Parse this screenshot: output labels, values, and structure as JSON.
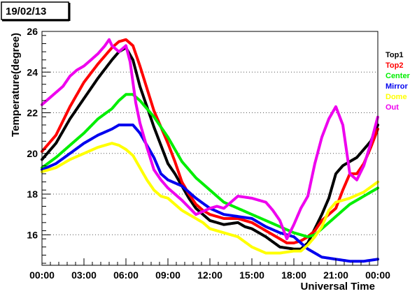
{
  "date_label": "19/02/13",
  "chart_data": {
    "type": "line",
    "title": "",
    "xlabel": "Universal Time",
    "ylabel": "Temperature(degree)",
    "xlim": [
      0,
      24
    ],
    "ylim": [
      14.5,
      26
    ],
    "x_ticks": [
      0,
      3,
      6,
      9,
      12,
      15,
      18,
      21,
      24
    ],
    "x_tick_labels": [
      "00:00",
      "03:00",
      "06:00",
      "09:00",
      "12:00",
      "15:00",
      "18:00",
      "21:00",
      "00:00"
    ],
    "y_ticks": [
      16,
      18,
      20,
      22,
      24,
      26
    ],
    "y_tick_labels": [
      "16",
      "18",
      "20",
      "22",
      "24",
      "26"
    ],
    "grid": "horizontal dotted",
    "legend_position": "right",
    "series": [
      {
        "name": "Top1",
        "color": "#000000",
        "points": [
          [
            0,
            19.7
          ],
          [
            1,
            20.5
          ],
          [
            2,
            21.7
          ],
          [
            3,
            22.7
          ],
          [
            4,
            23.7
          ],
          [
            5,
            24.6
          ],
          [
            5.5,
            25.0
          ],
          [
            6,
            25.2
          ],
          [
            6.5,
            24.6
          ],
          [
            7,
            23.3
          ],
          [
            7.5,
            22.3
          ],
          [
            8,
            21.3
          ],
          [
            8.5,
            20.4
          ],
          [
            9,
            19.5
          ],
          [
            9.5,
            19.0
          ],
          [
            10,
            18.4
          ],
          [
            10.5,
            17.8
          ],
          [
            11,
            17.3
          ],
          [
            11.5,
            17.0
          ],
          [
            12,
            16.7
          ],
          [
            13,
            16.5
          ],
          [
            14,
            16.6
          ],
          [
            14.5,
            16.4
          ],
          [
            15,
            16.3
          ],
          [
            16,
            15.9
          ],
          [
            17,
            15.4
          ],
          [
            18,
            15.3
          ],
          [
            18.5,
            15.3
          ],
          [
            19,
            15.6
          ],
          [
            19.5,
            16.3
          ],
          [
            20,
            17.0
          ],
          [
            20.5,
            17.8
          ],
          [
            21,
            19.0
          ],
          [
            21.5,
            19.4
          ],
          [
            22,
            19.6
          ],
          [
            22.5,
            19.8
          ],
          [
            23,
            20.2
          ],
          [
            23.5,
            20.6
          ],
          [
            24,
            21.4
          ]
        ]
      },
      {
        "name": "Top2",
        "color": "#ff0000",
        "points": [
          [
            0,
            20.1
          ],
          [
            1,
            20.9
          ],
          [
            2,
            22.3
          ],
          [
            3,
            23.5
          ],
          [
            4,
            24.4
          ],
          [
            5,
            25.2
          ],
          [
            5.5,
            25.5
          ],
          [
            6,
            25.6
          ],
          [
            6.5,
            25.3
          ],
          [
            7,
            24.3
          ],
          [
            7.5,
            23.2
          ],
          [
            8,
            22.1
          ],
          [
            8.5,
            21.3
          ],
          [
            9,
            20.5
          ],
          [
            9.5,
            19.6
          ],
          [
            10,
            18.6
          ],
          [
            10.5,
            18.0
          ],
          [
            11,
            17.5
          ],
          [
            11.5,
            17.2
          ],
          [
            12,
            17.0
          ],
          [
            13,
            16.8
          ],
          [
            14,
            16.8
          ],
          [
            15,
            16.6
          ],
          [
            16,
            16.2
          ],
          [
            17,
            15.8
          ],
          [
            17.5,
            15.6
          ],
          [
            18,
            15.6
          ],
          [
            18.5,
            15.7
          ],
          [
            19,
            15.9
          ],
          [
            19.5,
            16.2
          ],
          [
            20,
            16.7
          ],
          [
            20.5,
            17.0
          ],
          [
            21,
            17.3
          ],
          [
            21.5,
            18.2
          ],
          [
            22,
            19.0
          ],
          [
            22.5,
            19.0
          ],
          [
            23,
            19.5
          ],
          [
            23.5,
            20.3
          ],
          [
            24,
            21.2
          ]
        ]
      },
      {
        "name": "Center",
        "color": "#00ee00",
        "points": [
          [
            0,
            19.3
          ],
          [
            1,
            19.8
          ],
          [
            2,
            20.4
          ],
          [
            3,
            21.0
          ],
          [
            4,
            21.7
          ],
          [
            5,
            22.2
          ],
          [
            5.5,
            22.6
          ],
          [
            6,
            22.9
          ],
          [
            6.5,
            22.9
          ],
          [
            7,
            22.6
          ],
          [
            8,
            21.8
          ],
          [
            9,
            20.8
          ],
          [
            10,
            19.6
          ],
          [
            11,
            18.8
          ],
          [
            12,
            18.2
          ],
          [
            13,
            17.6
          ],
          [
            14,
            17.3
          ],
          [
            15,
            17.0
          ],
          [
            16,
            16.7
          ],
          [
            17,
            16.4
          ],
          [
            18,
            16.1
          ],
          [
            19,
            15.9
          ],
          [
            19.5,
            16.0
          ],
          [
            20,
            16.3
          ],
          [
            21,
            16.9
          ],
          [
            22,
            17.5
          ],
          [
            23,
            17.9
          ],
          [
            24,
            18.3
          ]
        ]
      },
      {
        "name": "Mirror",
        "color": "#0000ee",
        "points": [
          [
            0,
            19.2
          ],
          [
            1,
            19.5
          ],
          [
            2,
            20.0
          ],
          [
            3,
            20.5
          ],
          [
            4,
            20.9
          ],
          [
            5,
            21.2
          ],
          [
            5.5,
            21.4
          ],
          [
            6,
            21.4
          ],
          [
            6.5,
            21.4
          ],
          [
            7,
            21.0
          ],
          [
            7.5,
            20.4
          ],
          [
            8,
            19.8
          ],
          [
            8.5,
            19.0
          ],
          [
            9,
            18.7
          ],
          [
            10,
            18.4
          ],
          [
            11,
            17.8
          ],
          [
            12,
            17.3
          ],
          [
            13,
            17.0
          ],
          [
            14,
            16.9
          ],
          [
            15,
            16.8
          ],
          [
            16,
            16.4
          ],
          [
            17,
            16.1
          ],
          [
            17.5,
            16.0
          ],
          [
            18,
            15.9
          ],
          [
            18.5,
            15.6
          ],
          [
            19,
            15.3
          ],
          [
            20,
            14.9
          ],
          [
            21,
            14.8
          ],
          [
            22,
            14.7
          ],
          [
            23,
            14.7
          ],
          [
            24,
            14.8
          ]
        ]
      },
      {
        "name": "Dome",
        "color": "#ffff00",
        "points": [
          [
            0,
            19.1
          ],
          [
            1,
            19.3
          ],
          [
            2,
            19.7
          ],
          [
            3,
            20.0
          ],
          [
            4,
            20.3
          ],
          [
            5,
            20.5
          ],
          [
            5.5,
            20.4
          ],
          [
            6,
            20.2
          ],
          [
            6.5,
            19.9
          ],
          [
            7,
            19.3
          ],
          [
            7.5,
            18.7
          ],
          [
            8,
            18.2
          ],
          [
            8.5,
            17.9
          ],
          [
            9,
            17.8
          ],
          [
            9.5,
            17.5
          ],
          [
            10,
            17.2
          ],
          [
            10.5,
            17.0
          ],
          [
            11,
            16.8
          ],
          [
            11.5,
            16.6
          ],
          [
            12,
            16.3
          ],
          [
            13,
            16.1
          ],
          [
            14,
            15.9
          ],
          [
            15,
            15.4
          ],
          [
            16,
            15.1
          ],
          [
            17,
            15.1
          ],
          [
            18,
            15.2
          ],
          [
            18.5,
            15.2
          ],
          [
            19,
            15.5
          ],
          [
            19.5,
            15.9
          ],
          [
            20,
            16.4
          ],
          [
            20.5,
            17.2
          ],
          [
            21,
            17.6
          ],
          [
            22,
            17.8
          ],
          [
            23,
            18.1
          ],
          [
            24,
            18.6
          ]
        ]
      },
      {
        "name": "Out",
        "color": "#ee00ee",
        "points": [
          [
            0,
            22.4
          ],
          [
            0.5,
            22.7
          ],
          [
            1,
            23.0
          ],
          [
            1.5,
            23.3
          ],
          [
            2,
            23.8
          ],
          [
            2.5,
            24.1
          ],
          [
            3,
            24.3
          ],
          [
            3.5,
            24.6
          ],
          [
            4,
            24.9
          ],
          [
            4.5,
            25.3
          ],
          [
            4.8,
            25.6
          ],
          [
            5,
            25.3
          ],
          [
            5.5,
            25.0
          ],
          [
            6,
            25.3
          ],
          [
            6.3,
            24.5
          ],
          [
            6.7,
            22.5
          ],
          [
            7,
            21.5
          ],
          [
            7.5,
            20.3
          ],
          [
            8,
            19.2
          ],
          [
            8.5,
            18.7
          ],
          [
            9,
            18.3
          ],
          [
            10,
            17.7
          ],
          [
            11,
            17.0
          ],
          [
            12,
            17.3
          ],
          [
            12.5,
            17.4
          ],
          [
            13,
            17.3
          ],
          [
            13.5,
            17.6
          ],
          [
            14,
            17.9
          ],
          [
            15,
            17.8
          ],
          [
            15.5,
            17.7
          ],
          [
            16,
            17.6
          ],
          [
            16.5,
            17.2
          ],
          [
            17,
            16.7
          ],
          [
            17.5,
            15.8
          ],
          [
            18,
            16.5
          ],
          [
            18.5,
            17.3
          ],
          [
            19,
            17.9
          ],
          [
            19.5,
            19.5
          ],
          [
            20,
            20.8
          ],
          [
            20.5,
            21.7
          ],
          [
            21,
            22.3
          ],
          [
            21.5,
            21.4
          ],
          [
            22,
            19.0
          ],
          [
            22.5,
            18.7
          ],
          [
            23,
            19.4
          ],
          [
            23.5,
            20.5
          ],
          [
            24,
            21.8
          ]
        ]
      }
    ]
  }
}
